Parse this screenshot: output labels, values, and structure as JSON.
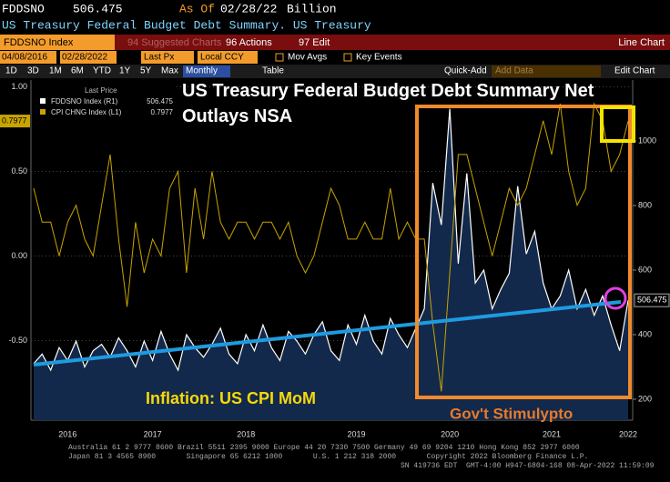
{
  "header": {
    "ticker": "FDDSNO",
    "price": "506.475",
    "as_of": "As Of",
    "date": "02/28/22",
    "unit": "Billion",
    "description": "US Treasury Federal Budget Debt Summary. US Treasury"
  },
  "toolbar": {
    "security": "FDDSNO Index",
    "suggested": "94 Suggested Charts",
    "actions": "96 Actions",
    "edit": "97 Edit",
    "chart_type": "Line Chart",
    "start_date": "04/08/2016",
    "end_date": "02/28/2022",
    "field": "Last Px",
    "currency": "Local CCY",
    "mov_avgs": "Mov Avgs",
    "key_events": "Key Events",
    "periods": [
      "1D",
      "3D",
      "1M",
      "6M",
      "YTD",
      "1Y",
      "5Y",
      "Max"
    ],
    "frequency": "Monthly",
    "table": "Table",
    "quick_add": "Quick-Add",
    "add_data": "Add Data",
    "edit_chart": "Edit Chart"
  },
  "chart_data": {
    "type": "line",
    "title": "US Treasury Federal Budget Debt Summary Net Outlays NSA",
    "legend_title": "Last Price",
    "annotations": [
      "Inflation: US CPI MoM",
      "Gov't Stimulypto"
    ],
    "categories": [
      null,
      null,
      null,
      null,
      "2016",
      null,
      null,
      null,
      null,
      null,
      null,
      null,
      null,
      null,
      "2017",
      null,
      null,
      null,
      null,
      null,
      null,
      null,
      null,
      null,
      null,
      "2018",
      null,
      null,
      null,
      null,
      null,
      null,
      null,
      null,
      null,
      null,
      null,
      null,
      "2019",
      null,
      null,
      null,
      null,
      null,
      null,
      null,
      null,
      null,
      null,
      "2020",
      null,
      null,
      null,
      null,
      null,
      null,
      null,
      null,
      null,
      null,
      null,
      "2021",
      null,
      null,
      null,
      null,
      null,
      null,
      null,
      null,
      "2022"
    ],
    "series": [
      {
        "name": "FDDSNO Index (R1)",
        "color": "#ffffff",
        "fill": "#13294b",
        "axis": "y2",
        "values": [
          310,
          340,
          290,
          360,
          320,
          380,
          300,
          350,
          370,
          330,
          390,
          350,
          300,
          380,
          320,
          410,
          340,
          290,
          400,
          360,
          330,
          370,
          420,
          340,
          310,
          400,
          350,
          430,
          360,
          320,
          410,
          380,
          340,
          400,
          440,
          350,
          320,
          430,
          370,
          460,
          380,
          340,
          450,
          400,
          360,
          420,
          480,
          870,
          740,
          1100,
          620,
          900,
          560,
          600,
          480,
          540,
          590,
          860,
          650,
          720,
          560,
          480,
          520,
          600,
          480,
          540,
          460,
          520,
          430,
          350,
          506.475
        ]
      },
      {
        "name": "CPI CHNG Index (L1)",
        "color": "#c8a400",
        "values": [
          0.4,
          0.2,
          0.2,
          0.0,
          0.2,
          0.3,
          0.1,
          0.0,
          0.3,
          0.6,
          0.1,
          -0.3,
          0.2,
          -0.1,
          0.1,
          0.0,
          0.4,
          0.5,
          -0.1,
          0.4,
          0.1,
          0.5,
          0.2,
          0.1,
          0.2,
          0.2,
          0.1,
          0.2,
          0.2,
          0.1,
          0.2,
          0.0,
          -0.1,
          0.0,
          0.2,
          0.4,
          0.3,
          0.1,
          0.1,
          0.2,
          0.1,
          0.1,
          0.4,
          0.1,
          0.2,
          0.1,
          0.1,
          -0.4,
          -0.8,
          -0.1,
          0.6,
          0.6,
          0.4,
          0.2,
          0.0,
          0.2,
          0.4,
          0.3,
          0.4,
          0.6,
          0.8,
          0.6,
          0.9,
          0.5,
          0.3,
          0.4,
          0.9,
          0.8,
          0.5,
          0.6,
          0.7977
        ]
      }
    ],
    "ylim": [
      -0.97,
      1.04
    ],
    "yticks": [
      {
        "value": -0.5,
        "label": "-0.50"
      },
      {
        "value": 0,
        "label": "0.00"
      },
      {
        "value": 0.5,
        "label": "0.50"
      },
      {
        "value": 1,
        "label": "1.00"
      }
    ],
    "y2lim": [
      135,
      1189
    ],
    "y2ticks": [
      200,
      400,
      600,
      800,
      1000
    ],
    "grid": true
  },
  "footer": [
    "Australia 61 2 9777 8600 Brazil 5511 2395 9000 Europe 44 20 7330 7500 Germany 49 69 9204 1210 Hong Kong 852 2977 6000",
    "Japan 81 3 4565 8900       Singapore 65 6212 1000       U.S. 1 212 318 2000       Copyright 2022 Bloomberg Finance L.P.",
    "SN 419736 EDT  GMT-4:00 H947-6804-168 08-Apr-2022 11:59:09"
  ]
}
